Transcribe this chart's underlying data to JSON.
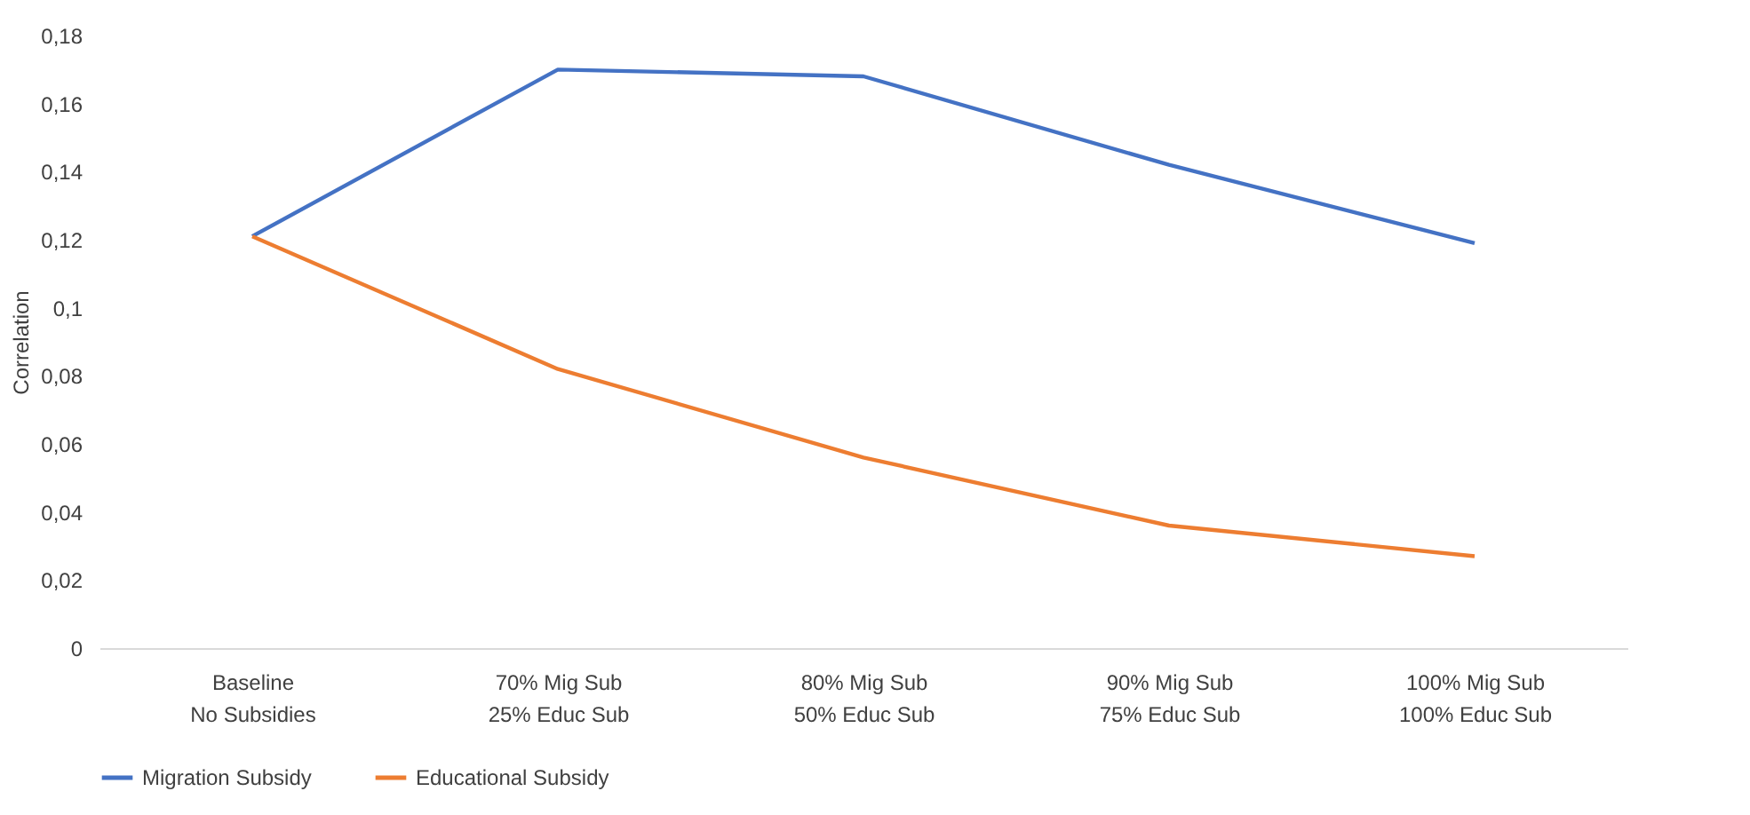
{
  "chart_data": {
    "type": "line",
    "ylabel": "Correlation",
    "categories": [
      "Baseline\nNo Subsidies",
      "70% Mig Sub\n25% Educ Sub",
      "80% Mig Sub\n50% Educ Sub",
      "90% Mig Sub\n75% Educ Sub",
      "100% Mig Sub\n100% Educ Sub"
    ],
    "series": [
      {
        "name": "Migration Subsidy",
        "color": "#4472c4",
        "values": [
          0.121,
          0.17,
          0.168,
          0.142,
          0.119
        ]
      },
      {
        "name": "Educational Subsidy",
        "color": "#ed7d31",
        "values": [
          0.121,
          0.082,
          0.056,
          0.036,
          0.027
        ]
      }
    ],
    "ylim": [
      0,
      0.18
    ],
    "yticks": [
      {
        "value": 0,
        "label": "0"
      },
      {
        "value": 0.02,
        "label": "0,02"
      },
      {
        "value": 0.04,
        "label": "0,04"
      },
      {
        "value": 0.06,
        "label": "0,06"
      },
      {
        "value": 0.08,
        "label": "0,08"
      },
      {
        "value": 0.1,
        "label": "0,1"
      },
      {
        "value": 0.12,
        "label": "0,12"
      },
      {
        "value": 0.14,
        "label": "0,14"
      },
      {
        "value": 0.16,
        "label": "0,16"
      },
      {
        "value": 0.18,
        "label": "0,18"
      }
    ],
    "grid": false,
    "legend": "bottom",
    "marker": "none",
    "line_style": "solid"
  }
}
